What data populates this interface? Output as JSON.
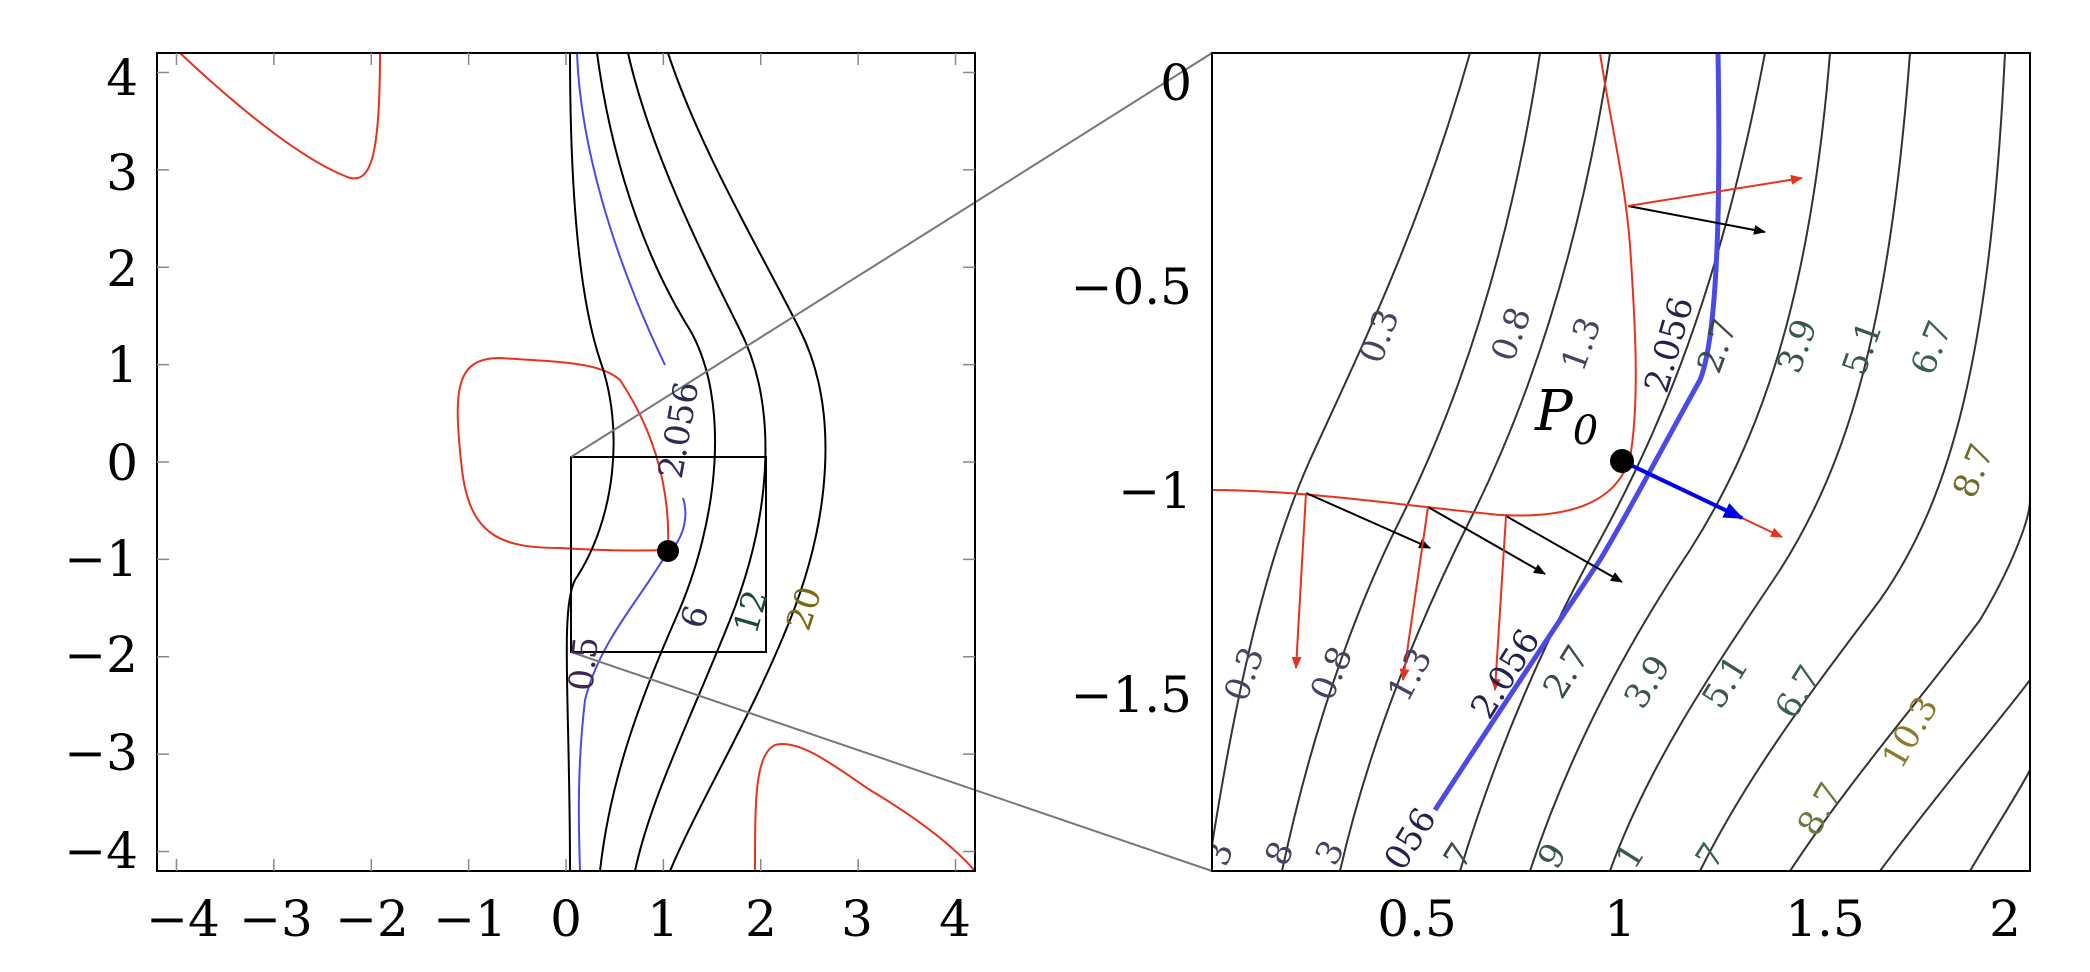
{
  "chart_data": [
    {
      "type": "line",
      "panel": "overview",
      "xlim": [
        -4.2,
        4.2
      ],
      "ylim": [
        -4.2,
        4.2
      ],
      "xticks": [
        "−4",
        "−3",
        "−2",
        "−1",
        "0",
        "1",
        "2",
        "3",
        "4"
      ],
      "yticks": [
        "4",
        "3",
        "2",
        "1",
        "0",
        "−1",
        "−2",
        "−3",
        "−4"
      ],
      "grid": false,
      "colors": {
        "contour": "#000000",
        "highlight": "#4a4ae6",
        "constraint": "#e8321e",
        "point": "#000000"
      },
      "highlight_level": "2.056",
      "contour_labels": [
        "0.5",
        "2.056",
        "6",
        "12",
        "20"
      ],
      "contour_label_colors": [
        "#3a2a4a",
        "#2a2a55",
        "#2a2a55",
        "#1e4a3e",
        "#7a6a14"
      ],
      "point": {
        "x": 1.05,
        "y": -0.93
      },
      "zoom_box": {
        "x": [
          0.05,
          2.05
        ],
        "y": [
          -1.95,
          0.05
        ]
      }
    },
    {
      "type": "line",
      "panel": "zoom",
      "xlim": [
        0.05,
        2.05
      ],
      "ylim": [
        -1.95,
        0.05
      ],
      "xticks": [
        "0.5",
        "1",
        "1.5",
        "2"
      ],
      "yticks": [
        "0",
        "−0.5",
        "−1",
        "−1.5"
      ],
      "grid": false,
      "colors": {
        "contour": "#333333",
        "highlight": "#4a4ae6",
        "constraint": "#e8321e",
        "gradient": "#0000ee",
        "direction": "#000000"
      },
      "contour_labels_upper": [
        "0.3",
        "0.8",
        "1.3",
        "2.056",
        "2.7",
        "3.9",
        "5.1",
        "6.7",
        "8.7"
      ],
      "contour_labels_lower": [
        "0.3",
        "0.8",
        "1.3",
        "2.056",
        "2.7",
        "3.9",
        "5.1",
        "6.7",
        "8.7",
        "10.3"
      ],
      "contour_labels_bottom": [
        "3",
        "8",
        "3",
        "056",
        "7",
        "9",
        "1",
        "7"
      ],
      "point_label": {
        "main": "P",
        "sub": "0"
      },
      "point": {
        "x": 1.05,
        "y": -0.93
      }
    }
  ]
}
